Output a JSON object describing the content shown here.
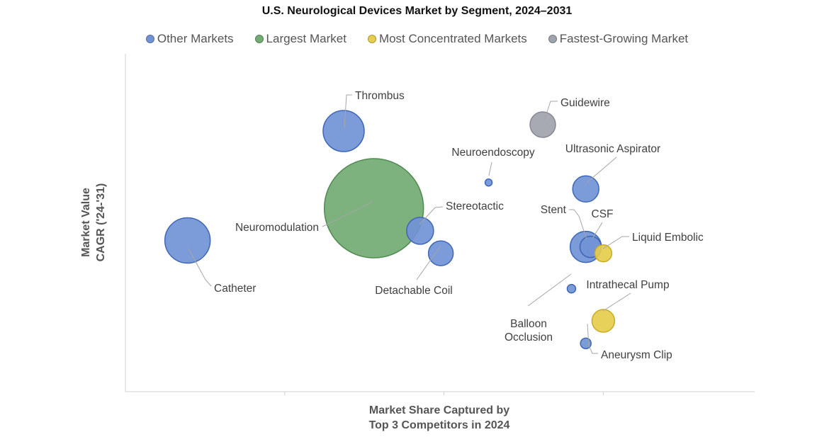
{
  "chart_data": {
    "type": "bubble",
    "title": "U.S. Neurological Devices Market by Segment, 2024–2031",
    "xlabel": [
      "Market Share Captured by",
      "Top 3 Competitors in 2024"
    ],
    "ylabel": [
      "Market Value",
      "CAGR ('24-'31)"
    ],
    "legend_position": "top",
    "grid": false,
    "axis_ticks_labeled": false,
    "colors": {
      "Other Markets": "#7193d6",
      "Largest Market": "#72ab73",
      "Most Concentrated Markets": "#e6cd4d",
      "Fastest-Growing Market": "#9fa3ab"
    },
    "series": [
      {
        "name": "Other Markets"
      },
      {
        "name": "Largest Market"
      },
      {
        "name": "Most Concentrated Markets"
      },
      {
        "name": "Fastest-Growing Market"
      }
    ],
    "points": [
      {
        "label": "Catheter",
        "group": "Other Markets",
        "x": 0.39,
        "y": 4.7,
        "size": 64
      },
      {
        "label": "Neuromodulation",
        "group": "Largest Market",
        "x": 1.56,
        "y": 5.7,
        "size": 140
      },
      {
        "label": "Thrombus",
        "group": "Other Markets",
        "x": 1.37,
        "y": 8.1,
        "size": 58
      },
      {
        "label": "Stereotactic",
        "group": "Other Markets",
        "x": 1.85,
        "y": 5.0,
        "size": 38
      },
      {
        "label": "Detachable Coil",
        "group": "Other Markets",
        "x": 1.98,
        "y": 4.3,
        "size": 35
      },
      {
        "label": "Neuroendoscopy",
        "group": "Other Markets",
        "x": 2.28,
        "y": 6.5,
        "size": 10
      },
      {
        "label": "Guidewire",
        "group": "Fastest-Growing Market",
        "x": 2.62,
        "y": 8.3,
        "size": 36
      },
      {
        "label": "Ultrasonic Aspirator",
        "group": "Other Markets",
        "x": 2.89,
        "y": 6.3,
        "size": 37
      },
      {
        "label": "Stent",
        "group": "Other Markets",
        "x": 2.89,
        "y": 4.5,
        "size": 44
      },
      {
        "label": "CSF",
        "group": "Other Markets",
        "x": 2.92,
        "y": 4.5,
        "size": 30
      },
      {
        "label": "Liquid Embolic",
        "group": "Most Concentrated Markets",
        "x": 3.0,
        "y": 4.3,
        "size": 24
      },
      {
        "label": "Balloon Occlusion",
        "group": "Other Markets",
        "x": 2.8,
        "y": 3.2,
        "size": 12
      },
      {
        "label": "Intrathecal Pump",
        "group": "Most Concentrated Markets",
        "x": 3.0,
        "y": 2.2,
        "size": 32
      },
      {
        "label": "Aneurysm Clip",
        "group": "Other Markets",
        "x": 2.89,
        "y": 1.5,
        "size": 15
      }
    ]
  }
}
